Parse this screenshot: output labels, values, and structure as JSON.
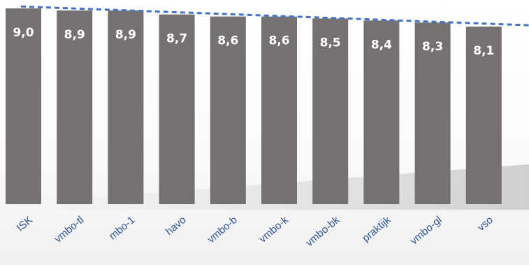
{
  "chart_data": {
    "type": "bar",
    "categories": [
      "ISK",
      "vmbo-tl",
      "mbo-1",
      "havo",
      "vmbo-b",
      "vmbo-k",
      "vmbo-bk",
      "praktijk",
      "vmbo-gl",
      "vso"
    ],
    "values": [
      9.0,
      8.9,
      8.9,
      8.7,
      8.6,
      8.6,
      8.5,
      8.4,
      8.3,
      8.1
    ],
    "data_labels": [
      "9,0",
      "8,9",
      "8,9",
      "8,7",
      "8,6",
      "8,6",
      "8,5",
      "8,4",
      "8,3",
      "8,1"
    ],
    "title": "",
    "xlabel": "",
    "ylabel": "",
    "trendline": {
      "type": "linear",
      "style": "dashed"
    },
    "grid": false,
    "legend": "none",
    "colors": {
      "bar": "#767171",
      "label": "#ffffff",
      "trendline": "#4472c4",
      "tick": "#2f5597",
      "background": "#ffffff",
      "shadow": "#d9d9d9"
    }
  }
}
